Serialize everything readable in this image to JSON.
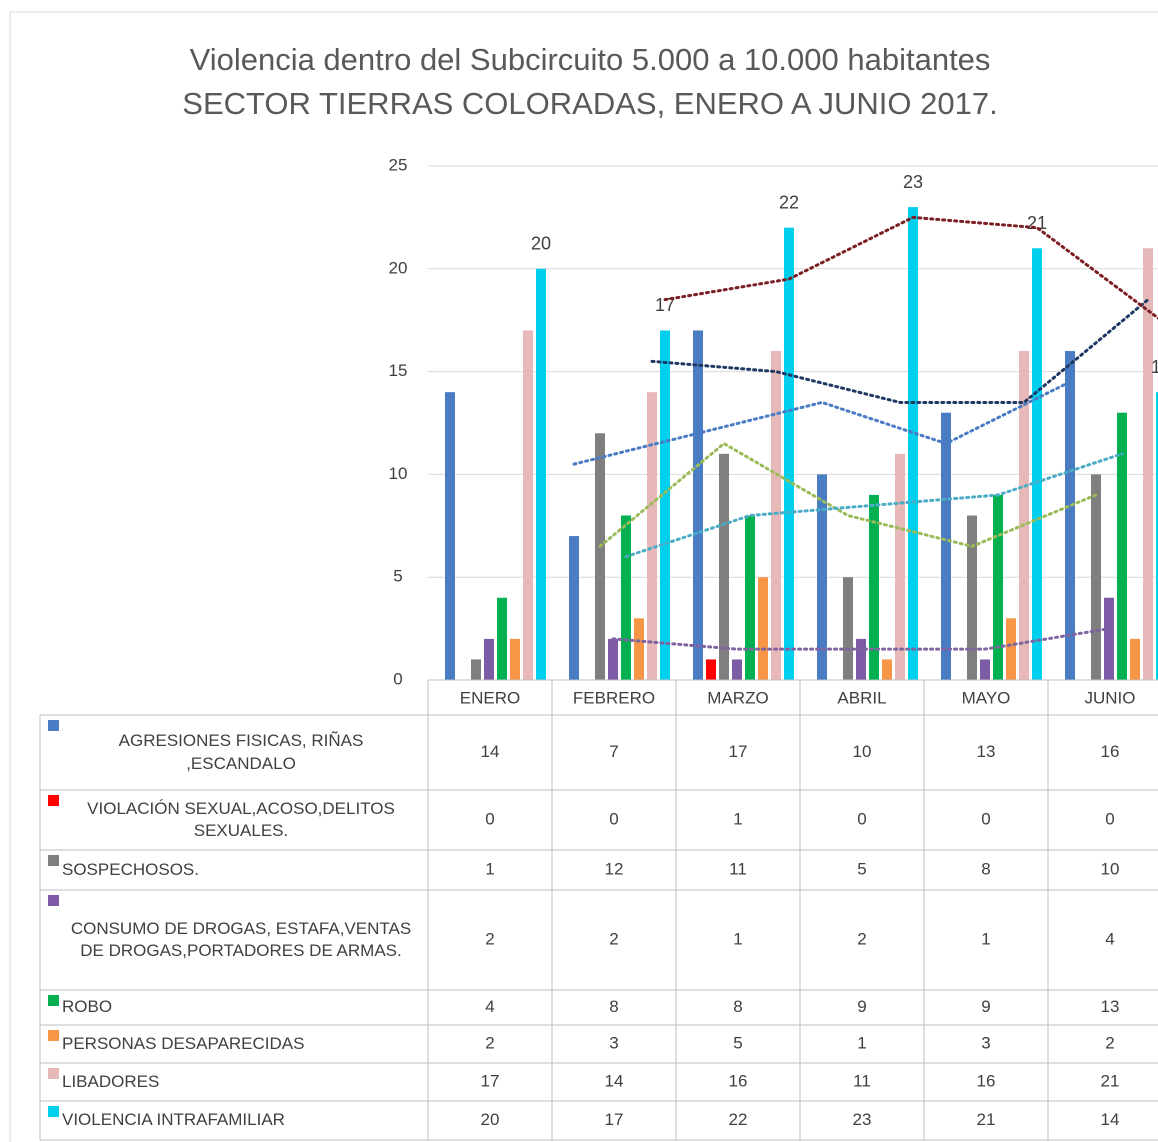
{
  "chart_data": {
    "type": "bar",
    "title": "Violencia dentro del Subcircuito 5.000 a 10.000 habitantes",
    "subtitle": "SECTOR TIERRAS COLORADAS, ENERO A JUNIO 2017.",
    "categories": [
      "ENERO",
      "FEBRERO",
      "MARZO",
      "ABRIL",
      "MAYO",
      "JUNIO"
    ],
    "ylim": [
      0,
      25
    ],
    "yticks": [
      0,
      5,
      10,
      15,
      20,
      25
    ],
    "grid": true,
    "trendline": "moving_average",
    "trendline_period": 2,
    "series": [
      {
        "name": "AGRESIONES FISICAS, RIÑAS ,ESCANDALO",
        "color": "#4a7cc4",
        "trend_color": "#4a7cc4",
        "values": [
          14,
          7,
          17,
          10,
          13,
          16
        ]
      },
      {
        "name": "VIOLACIÓN SEXUAL,ACOSO,DELITOS SEXUALES.",
        "color": "#ff0000",
        "values": [
          0,
          0,
          1,
          0,
          0,
          0
        ]
      },
      {
        "name": "SOSPECHOSOS.",
        "color": "#7f7f7f",
        "trend_color": "#9bbb59",
        "values": [
          1,
          12,
          11,
          5,
          8,
          10
        ]
      },
      {
        "name": "CONSUMO DE DROGAS, ESTAFA,VENTAS DE DROGAS,PORTADORES DE ARMAS.",
        "color": "#7d5ba6",
        "trend_color": "#8064a2",
        "values": [
          2,
          2,
          1,
          2,
          1,
          4
        ]
      },
      {
        "name": "ROBO",
        "color": "#00b050",
        "trend_color": "#4bacc6",
        "values": [
          4,
          8,
          8,
          9,
          9,
          13
        ]
      },
      {
        "name": "PERSONAS DESAPARECIDAS",
        "color": "#f79646",
        "values": [
          2,
          3,
          5,
          1,
          3,
          2
        ]
      },
      {
        "name": "LIBADORES",
        "color": "#e6b8b7",
        "trend_color": "#1f3864",
        "values": [
          17,
          14,
          16,
          11,
          16,
          21
        ]
      },
      {
        "name": "VIOLENCIA INTRAFAMILIAR",
        "color": "#00cfee",
        "trend_color": "#7b1f24",
        "data_labels": true,
        "values": [
          20,
          17,
          22,
          23,
          21,
          14
        ]
      }
    ]
  }
}
